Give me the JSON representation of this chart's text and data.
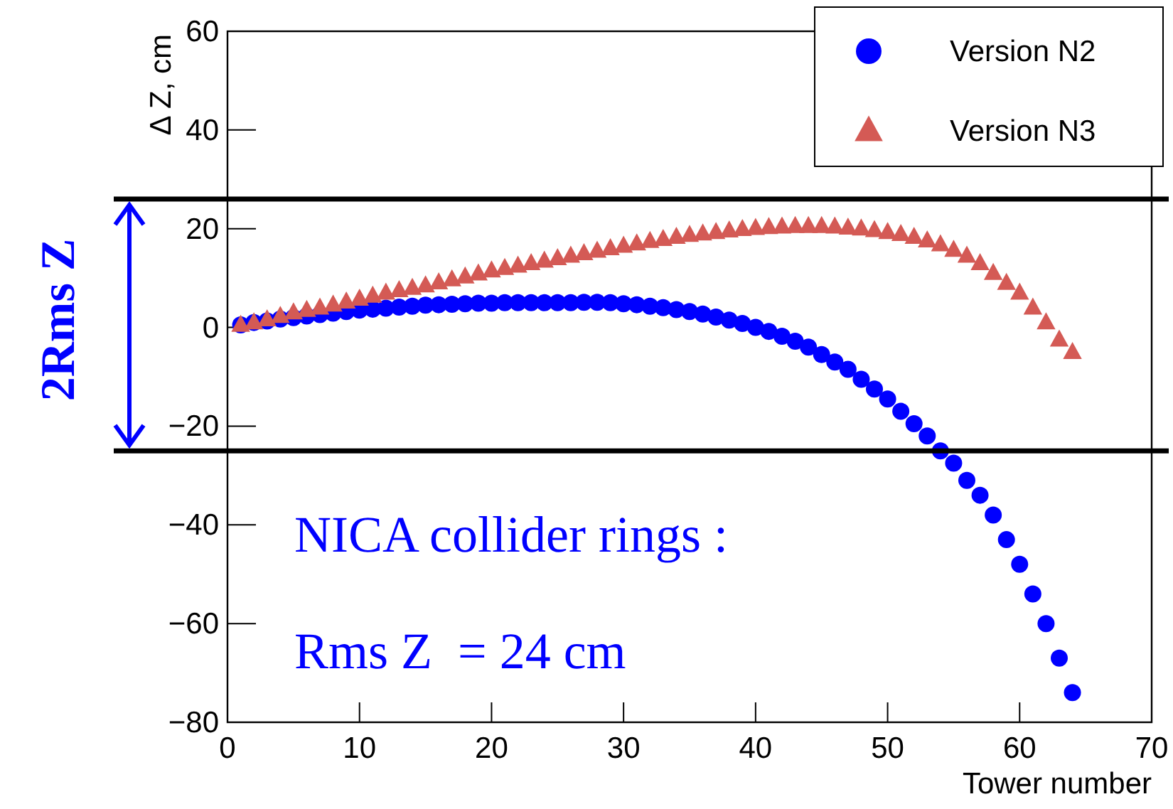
{
  "chart_data": {
    "type": "scatter",
    "xlabel": "Tower number",
    "ylabel": "Δ Z, cm",
    "x": [
      1,
      2,
      3,
      4,
      5,
      6,
      7,
      8,
      9,
      10,
      11,
      12,
      13,
      14,
      15,
      16,
      17,
      18,
      19,
      20,
      21,
      22,
      23,
      24,
      25,
      26,
      27,
      28,
      29,
      30,
      31,
      32,
      33,
      34,
      35,
      36,
      37,
      38,
      39,
      40,
      41,
      42,
      43,
      44,
      45,
      46,
      47,
      48,
      49,
      50,
      51,
      52,
      53,
      54,
      55,
      56,
      57,
      58,
      59,
      60,
      61,
      62,
      63,
      64
    ],
    "series": [
      {
        "name": "Version N2",
        "color": "#0000ff",
        "marker": "circle",
        "values": [
          0.5,
          1,
          1.3,
          1.7,
          2,
          2.3,
          2.6,
          2.9,
          3.2,
          3.5,
          3.7,
          3.9,
          4.1,
          4.3,
          4.5,
          4.6,
          4.7,
          4.8,
          4.9,
          4.9,
          5,
          5,
          5,
          5,
          5,
          5,
          5.1,
          5.1,
          5,
          4.8,
          4.6,
          4.3,
          4,
          3.6,
          3.2,
          2.7,
          2.1,
          1.5,
          0.8,
          0,
          -0.8,
          -1.8,
          -2.8,
          -4,
          -5.5,
          -7,
          -8.5,
          -10.5,
          -12.5,
          -14.5,
          -17,
          -19.5,
          -22,
          -25,
          -27.5,
          -31,
          -34,
          -38,
          -43,
          -48,
          -54,
          -60,
          -67,
          -74
        ]
      },
      {
        "name": "Version N3",
        "color": "#d45a55",
        "marker": "triangle",
        "values": [
          0.5,
          1,
          1.6,
          2.3,
          3,
          3.5,
          4,
          4.6,
          5.2,
          5.8,
          6.4,
          7,
          7.5,
          8,
          8.5,
          9.1,
          9.7,
          10.3,
          10.9,
          11.5,
          12,
          12.5,
          13,
          13.5,
          14,
          14.5,
          15,
          15.5,
          16,
          16.5,
          17,
          17.5,
          17.9,
          18.3,
          18.7,
          19,
          19.3,
          19.6,
          19.9,
          20.1,
          20.3,
          20.4,
          20.5,
          20.5,
          20.5,
          20.4,
          20.2,
          20,
          19.7,
          19.3,
          18.9,
          18.3,
          17.6,
          16.8,
          15.7,
          14.5,
          13,
          11,
          9,
          7,
          4,
          1,
          -2.5,
          -5
        ]
      }
    ],
    "xlim": [
      0,
      70
    ],
    "xticks": [
      0,
      10,
      20,
      30,
      40,
      50,
      60,
      70
    ],
    "ylim": [
      -80,
      60
    ],
    "yticks": [
      -80,
      -60,
      -40,
      -20,
      0,
      20,
      40,
      60
    ],
    "ref_lines": [
      {
        "axis": "y",
        "value": 26,
        "color": "#000000"
      },
      {
        "axis": "y",
        "value": -25,
        "color": "#000000"
      }
    ],
    "annotations": [
      "2Rms Z",
      "NICA collider rings :",
      "Rms Z  = 24 cm"
    ],
    "legend": "top right",
    "grid": false
  }
}
